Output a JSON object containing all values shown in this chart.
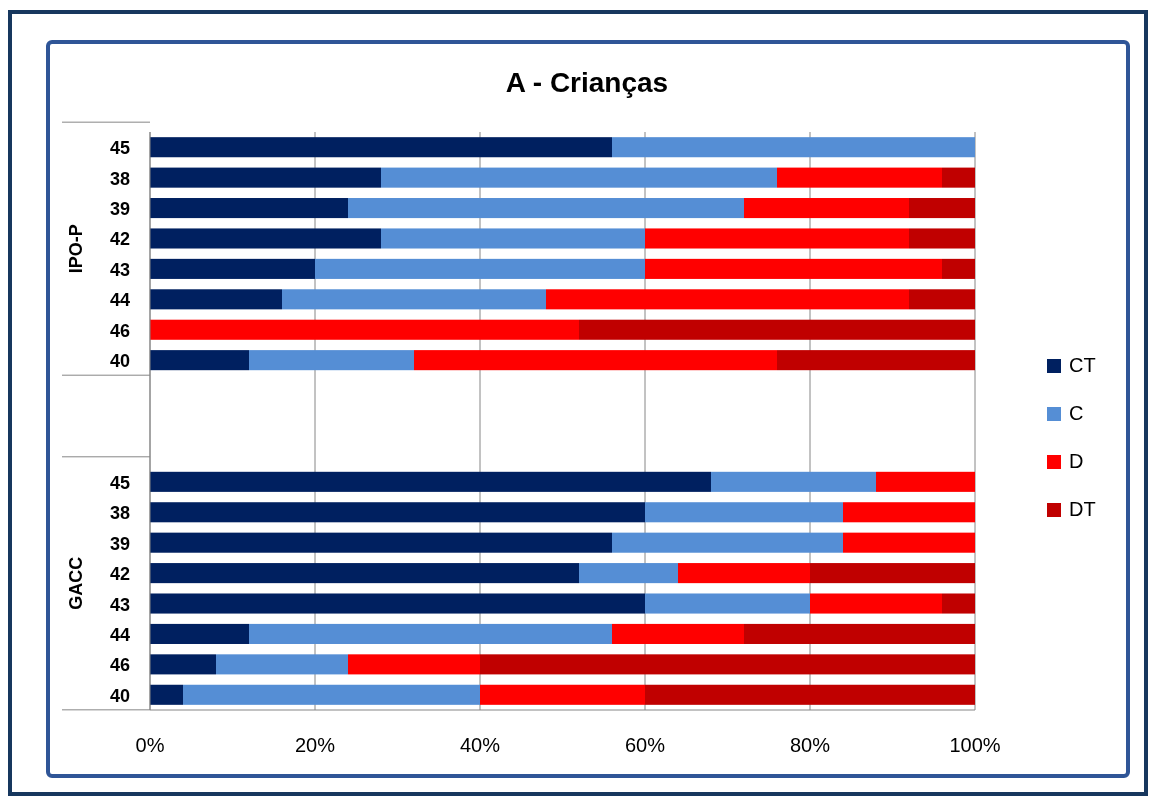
{
  "chart_data": {
    "type": "bar",
    "orientation": "horizontal",
    "stacked": true,
    "title": "A - Crianças",
    "categories": [
      "45",
      "38",
      "39",
      "42",
      "43",
      "44",
      "46",
      "40",
      null,
      null,
      null,
      "45",
      "38",
      "39",
      "42",
      "43",
      "44",
      "46",
      "40"
    ],
    "series": [
      {
        "name": "CT",
        "color": "#002060",
        "values": [
          56,
          28,
          24,
          28,
          20,
          16,
          0,
          12,
          null,
          null,
          null,
          68,
          60,
          56,
          52,
          60,
          12,
          8,
          4
        ]
      },
      {
        "name": "C",
        "color": "#558ed5",
        "values": [
          44,
          48,
          48,
          32,
          40,
          32,
          0,
          20,
          null,
          null,
          null,
          20,
          24,
          28,
          12,
          20,
          44,
          16,
          36
        ]
      },
      {
        "name": "D",
        "color": "#ff0000",
        "values": [
          0,
          20,
          20,
          32,
          36,
          44,
          52,
          44,
          null,
          null,
          null,
          12,
          16,
          16,
          16,
          16,
          16,
          16,
          20
        ]
      },
      {
        "name": "DT",
        "color": "#c00000",
        "values": [
          0,
          4,
          8,
          8,
          4,
          8,
          48,
          24,
          null,
          null,
          null,
          0,
          0,
          0,
          20,
          4,
          28,
          60,
          40
        ]
      }
    ],
    "xlim": [
      0,
      100
    ],
    "xticks": [
      {
        "value": 0,
        "label": "0%"
      },
      {
        "value": 20,
        "label": "20%"
      },
      {
        "value": 40,
        "label": "40%"
      },
      {
        "value": 60,
        "label": "60%"
      },
      {
        "value": 80,
        "label": "80%"
      },
      {
        "value": 100,
        "label": "100%"
      }
    ],
    "grid": "x",
    "legend": "right",
    "annotations": [
      "IPO-P",
      "GACC"
    ]
  }
}
